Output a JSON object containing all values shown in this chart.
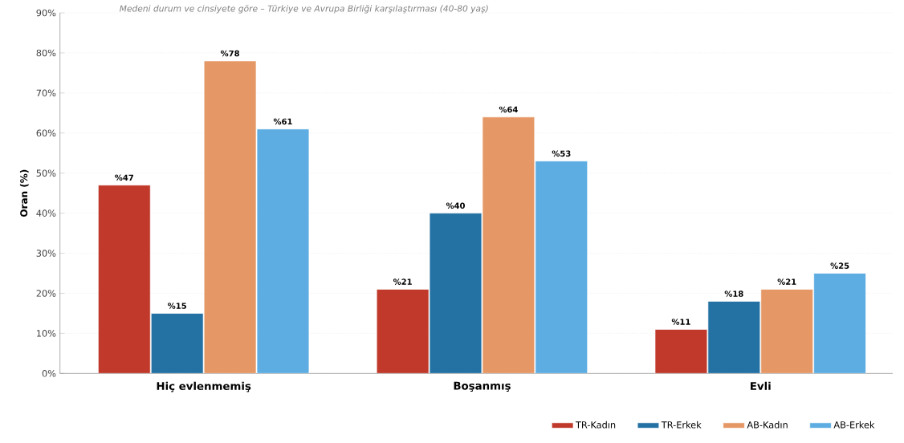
{
  "chart_data": {
    "type": "bar",
    "subtitle": "Medeni durum ve cinsiyete göre – Türkiye ve Avrupa Birliği karşılaştırması (40-80 yaş)",
    "ylabel": "Oran (%)",
    "categories": [
      "Hiç evlenmemiş",
      "Boşanmış",
      "Evli"
    ],
    "series": [
      {
        "name": "TR-Kadın",
        "color": "#c0392b",
        "values": [
          47,
          21,
          11
        ],
        "value_labels": [
          "%47",
          "%21",
          "%11"
        ]
      },
      {
        "name": "TR-Erkek",
        "color": "#2471a3",
        "values": [
          15,
          40,
          18
        ],
        "value_labels": [
          "%15",
          "%40",
          "%18"
        ]
      },
      {
        "name": "AB-Kadın",
        "color": "#e59866",
        "values": [
          78,
          64,
          21
        ],
        "value_labels": [
          "%78",
          "%64",
          "%21"
        ]
      },
      {
        "name": "AB-Erkek",
        "color": "#5dade2",
        "values": [
          61,
          53,
          25
        ],
        "value_labels": [
          "%61",
          "%53",
          "%25"
        ]
      }
    ],
    "ylim": [
      0,
      90
    ],
    "yticks": [
      {
        "value": 0,
        "label": "0%"
      },
      {
        "value": 10,
        "label": "10%"
      },
      {
        "value": 20,
        "label": "20%"
      },
      {
        "value": 30,
        "label": "30%"
      },
      {
        "value": 40,
        "label": "40%"
      },
      {
        "value": 50,
        "label": "50%"
      },
      {
        "value": 60,
        "label": "60%"
      },
      {
        "value": 70,
        "label": "70%"
      },
      {
        "value": 80,
        "label": "80%"
      },
      {
        "value": 90,
        "label": "90%"
      }
    ],
    "grid": "y",
    "legend": "bottom right"
  }
}
